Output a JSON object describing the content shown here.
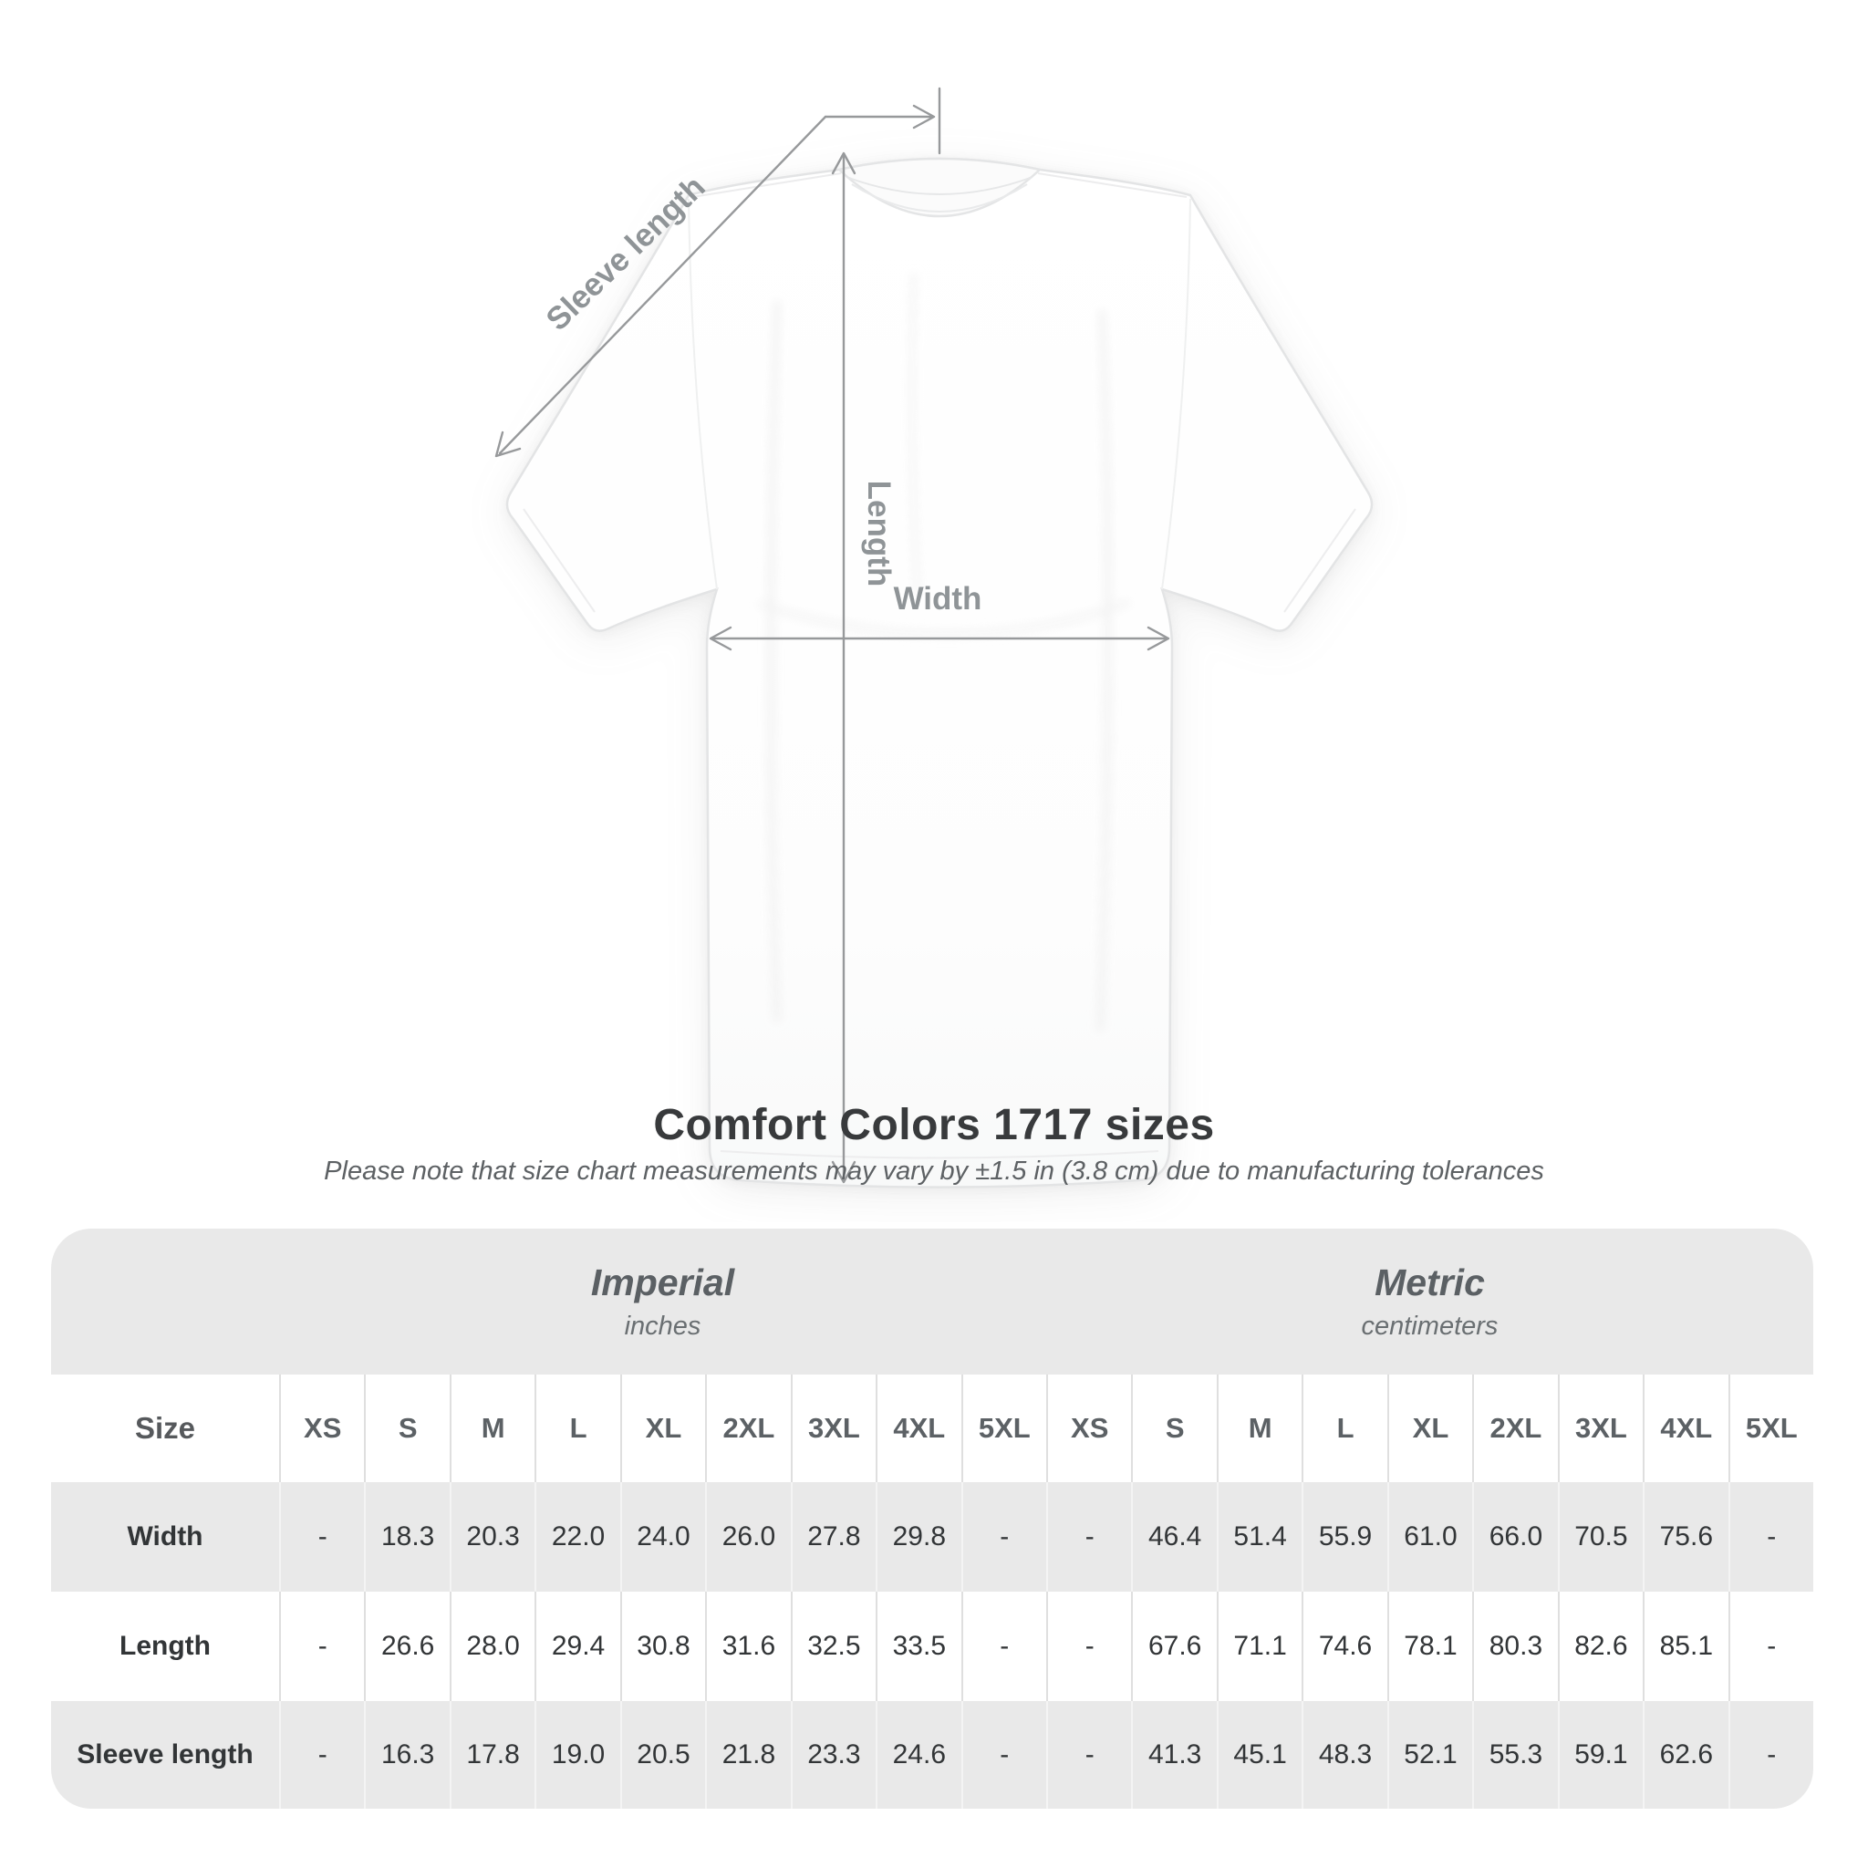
{
  "diagram": {
    "sleeve_label": "Sleeve length",
    "length_label": "Length",
    "width_label": "Width",
    "line_color": "#97999b",
    "label_color": "#8f9497"
  },
  "title": "Comfort Colors 1717 sizes",
  "subtitle": "Please note that size chart measurements may vary by ±1.5 in (3.8 cm) due to manufacturing tolerances",
  "table": {
    "size_label": "Size",
    "sizes": [
      "XS",
      "S",
      "M",
      "L",
      "XL",
      "2XL",
      "3XL",
      "4XL",
      "5XL"
    ],
    "unit_groups": [
      {
        "name": "Imperial",
        "unit": "inches"
      },
      {
        "name": "Metric",
        "unit": "centimeters"
      }
    ],
    "rows": [
      {
        "label": "Width",
        "imperial": [
          "-",
          "18.3",
          "20.3",
          "22.0",
          "24.0",
          "26.0",
          "27.8",
          "29.8",
          "-"
        ],
        "metric": [
          "-",
          "46.4",
          "51.4",
          "55.9",
          "61.0",
          "66.0",
          "70.5",
          "75.6",
          "-"
        ]
      },
      {
        "label": "Length",
        "imperial": [
          "-",
          "26.6",
          "28.0",
          "29.4",
          "30.8",
          "31.6",
          "32.5",
          "33.5",
          "-"
        ],
        "metric": [
          "-",
          "67.6",
          "71.1",
          "74.6",
          "78.1",
          "80.3",
          "82.6",
          "85.1",
          "-"
        ]
      },
      {
        "label": "Sleeve length",
        "imperial": [
          "-",
          "16.3",
          "17.8",
          "19.0",
          "20.5",
          "21.8",
          "23.3",
          "24.6",
          "-"
        ],
        "metric": [
          "-",
          "41.3",
          "45.1",
          "48.3",
          "52.1",
          "55.3",
          "59.1",
          "62.6",
          "-"
        ]
      }
    ],
    "colors": {
      "band_bg": "#e9e9e9",
      "alt_row_bg": "#e9e9e9",
      "header_text": "#5b6064",
      "value_text": "#323537"
    }
  }
}
